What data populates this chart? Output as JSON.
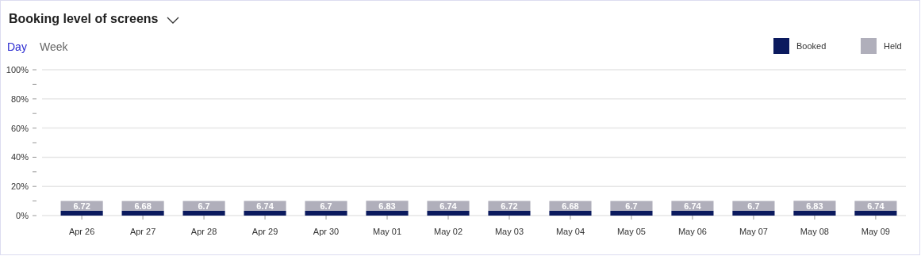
{
  "chart_data": {
    "type": "bar",
    "title": "Booking level of screens",
    "stacked": true,
    "categories": [
      "Apr 26",
      "Apr 27",
      "Apr 28",
      "Apr 29",
      "Apr 30",
      "May 01",
      "May 02",
      "May 03",
      "May 04",
      "May 05",
      "May 06",
      "May 07",
      "May 08",
      "May 09"
    ],
    "series": [
      {
        "name": "Booked",
        "color": "#0b1a5e",
        "values": [
          3.3,
          3.3,
          3.3,
          3.3,
          3.3,
          3.3,
          3.3,
          3.3,
          3.3,
          3.3,
          3.3,
          3.3,
          3.3,
          3.3
        ]
      },
      {
        "name": "Held",
        "color": "#b0afbb",
        "values": [
          6.72,
          6.68,
          6.7,
          6.74,
          6.7,
          6.83,
          6.74,
          6.72,
          6.68,
          6.7,
          6.74,
          6.7,
          6.83,
          6.74
        ],
        "value_labels": [
          "6.72",
          "6.68",
          "6.7",
          "6.74",
          "6.7",
          "6.83",
          "6.74",
          "6.72",
          "6.68",
          "6.7",
          "6.74",
          "6.7",
          "6.83",
          "6.74"
        ]
      }
    ],
    "ylim": [
      0,
      100
    ],
    "yticks": [
      {
        "value": 0,
        "label": "0%"
      },
      {
        "value": 10,
        "label": null
      },
      {
        "value": 20,
        "label": "20%"
      },
      {
        "value": 30,
        "label": null
      },
      {
        "value": 40,
        "label": "40%"
      },
      {
        "value": 50,
        "label": null
      },
      {
        "value": 60,
        "label": "60%"
      },
      {
        "value": 70,
        "label": null
      },
      {
        "value": 80,
        "label": "80%"
      },
      {
        "value": 90,
        "label": null
      },
      {
        "value": 100,
        "label": "100%"
      }
    ],
    "grid": "y",
    "legend": "top right",
    "annotations": [
      "Day",
      "Week"
    ]
  }
}
